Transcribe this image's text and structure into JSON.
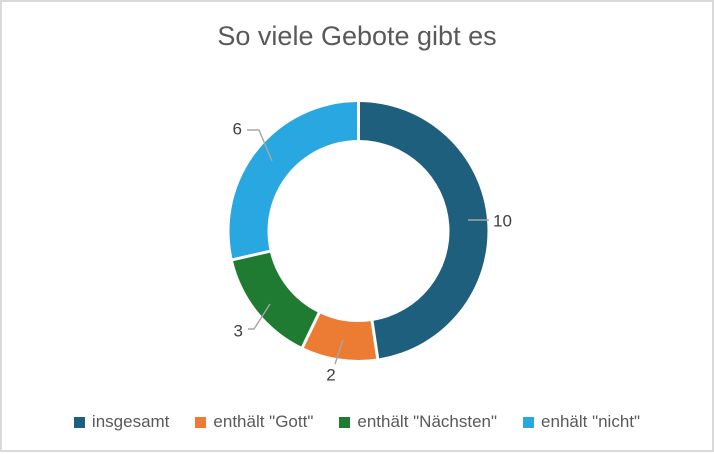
{
  "frame": {
    "background": "#FFFFFF",
    "border_color": "#D9D9D9"
  },
  "title": {
    "text": "So viele Gebote gibt es",
    "color": "#595959"
  },
  "chart_data": {
    "type": "pie",
    "subtype": "doughnut",
    "title": "So viele Gebote gibt es",
    "categories": [
      "insgesamt",
      "enthält \"Gott\"",
      "enthält \"Nächsten\"",
      "enhält \"nicht\""
    ],
    "values": [
      10,
      2,
      3,
      6
    ],
    "colors": [
      "#1F5F7E",
      "#EC7B33",
      "#1E7B31",
      "#28A7E0"
    ],
    "start_angle_deg": 0,
    "direction": "clockwise",
    "hole_ratio": 0.7,
    "data_labels": "value",
    "data_label_color": "#404040",
    "leader_line_color": "#A6A6A6",
    "slice_gap_color": "#FFFFFF",
    "legend_position": "bottom",
    "legend_text_color": "#595959"
  }
}
